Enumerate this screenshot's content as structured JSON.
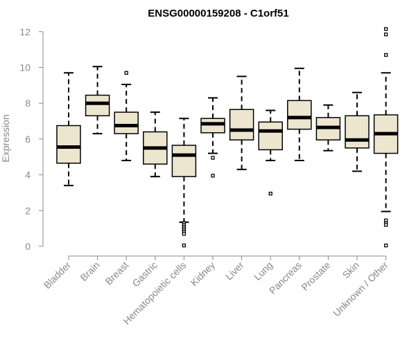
{
  "chart_data": {
    "type": "box",
    "title": "ENSG00000159208 - C1orf51",
    "ylabel": "Expression",
    "xlabel": "",
    "ylim": [
      0,
      12
    ],
    "yticks": [
      0,
      2,
      4,
      6,
      8,
      10,
      12
    ],
    "ytick_labels": [
      "0",
      "2",
      "4",
      "6",
      "8",
      "10",
      "12"
    ],
    "grid": false,
    "legend": "none",
    "box_fill": "#ede6cf",
    "box_stroke": "#000000",
    "axis_color": "#888888",
    "categories": [
      "Bladder",
      "Brain",
      "Breast",
      "Gastric",
      "Hematopoietic cells",
      "Kidney",
      "Liver",
      "Lung",
      "Pancreas",
      "Prostate",
      "Skin",
      "Unknown / Other"
    ],
    "boxes": [
      {
        "category": "Bladder",
        "whisker_low": 3.4,
        "q1": 4.65,
        "median": 5.55,
        "q3": 6.75,
        "whisker_high": 9.7,
        "outliers": []
      },
      {
        "category": "Brain",
        "whisker_low": 6.3,
        "q1": 7.3,
        "median": 8.0,
        "q3": 8.45,
        "whisker_high": 10.05,
        "outliers": []
      },
      {
        "category": "Breast",
        "whisker_low": 4.8,
        "q1": 6.3,
        "median": 6.75,
        "q3": 7.5,
        "whisker_high": 9.05,
        "outliers": [
          9.7
        ]
      },
      {
        "category": "Gastric",
        "whisker_low": 3.9,
        "q1": 4.6,
        "median": 5.5,
        "q3": 6.4,
        "whisker_high": 7.5,
        "outliers": []
      },
      {
        "category": "Hematopoietic cells",
        "whisker_low": 1.35,
        "q1": 3.9,
        "median": 5.1,
        "q3": 5.65,
        "whisker_high": 7.15,
        "outliers": [
          1.3,
          1.2,
          1.1,
          1.0,
          0.9,
          0.8,
          0.7,
          0.05
        ]
      },
      {
        "category": "Kidney",
        "whisker_low": 5.2,
        "q1": 6.35,
        "median": 6.85,
        "q3": 7.15,
        "whisker_high": 8.3,
        "outliers": [
          4.95,
          3.95
        ]
      },
      {
        "category": "Liver",
        "whisker_low": 4.3,
        "q1": 5.95,
        "median": 6.5,
        "q3": 7.65,
        "whisker_high": 9.5,
        "outliers": []
      },
      {
        "category": "Lung",
        "whisker_low": 4.8,
        "q1": 5.4,
        "median": 6.45,
        "q3": 6.95,
        "whisker_high": 7.6,
        "outliers": [
          2.95
        ]
      },
      {
        "category": "Pancreas",
        "whisker_low": 4.8,
        "q1": 6.55,
        "median": 7.2,
        "q3": 8.15,
        "whisker_high": 9.95,
        "outliers": []
      },
      {
        "category": "Prostate",
        "whisker_low": 5.35,
        "q1": 5.95,
        "median": 6.65,
        "q3": 7.2,
        "whisker_high": 7.9,
        "outliers": []
      },
      {
        "category": "Skin",
        "whisker_low": 4.2,
        "q1": 5.5,
        "median": 5.95,
        "q3": 7.3,
        "whisker_high": 8.6,
        "outliers": []
      },
      {
        "category": "Unknown / Other",
        "whisker_low": 1.95,
        "q1": 5.2,
        "median": 6.3,
        "q3": 7.35,
        "whisker_high": 9.7,
        "outliers": [
          12.15,
          11.85,
          10.7,
          1.45,
          1.3,
          1.2,
          0.05
        ]
      }
    ]
  }
}
